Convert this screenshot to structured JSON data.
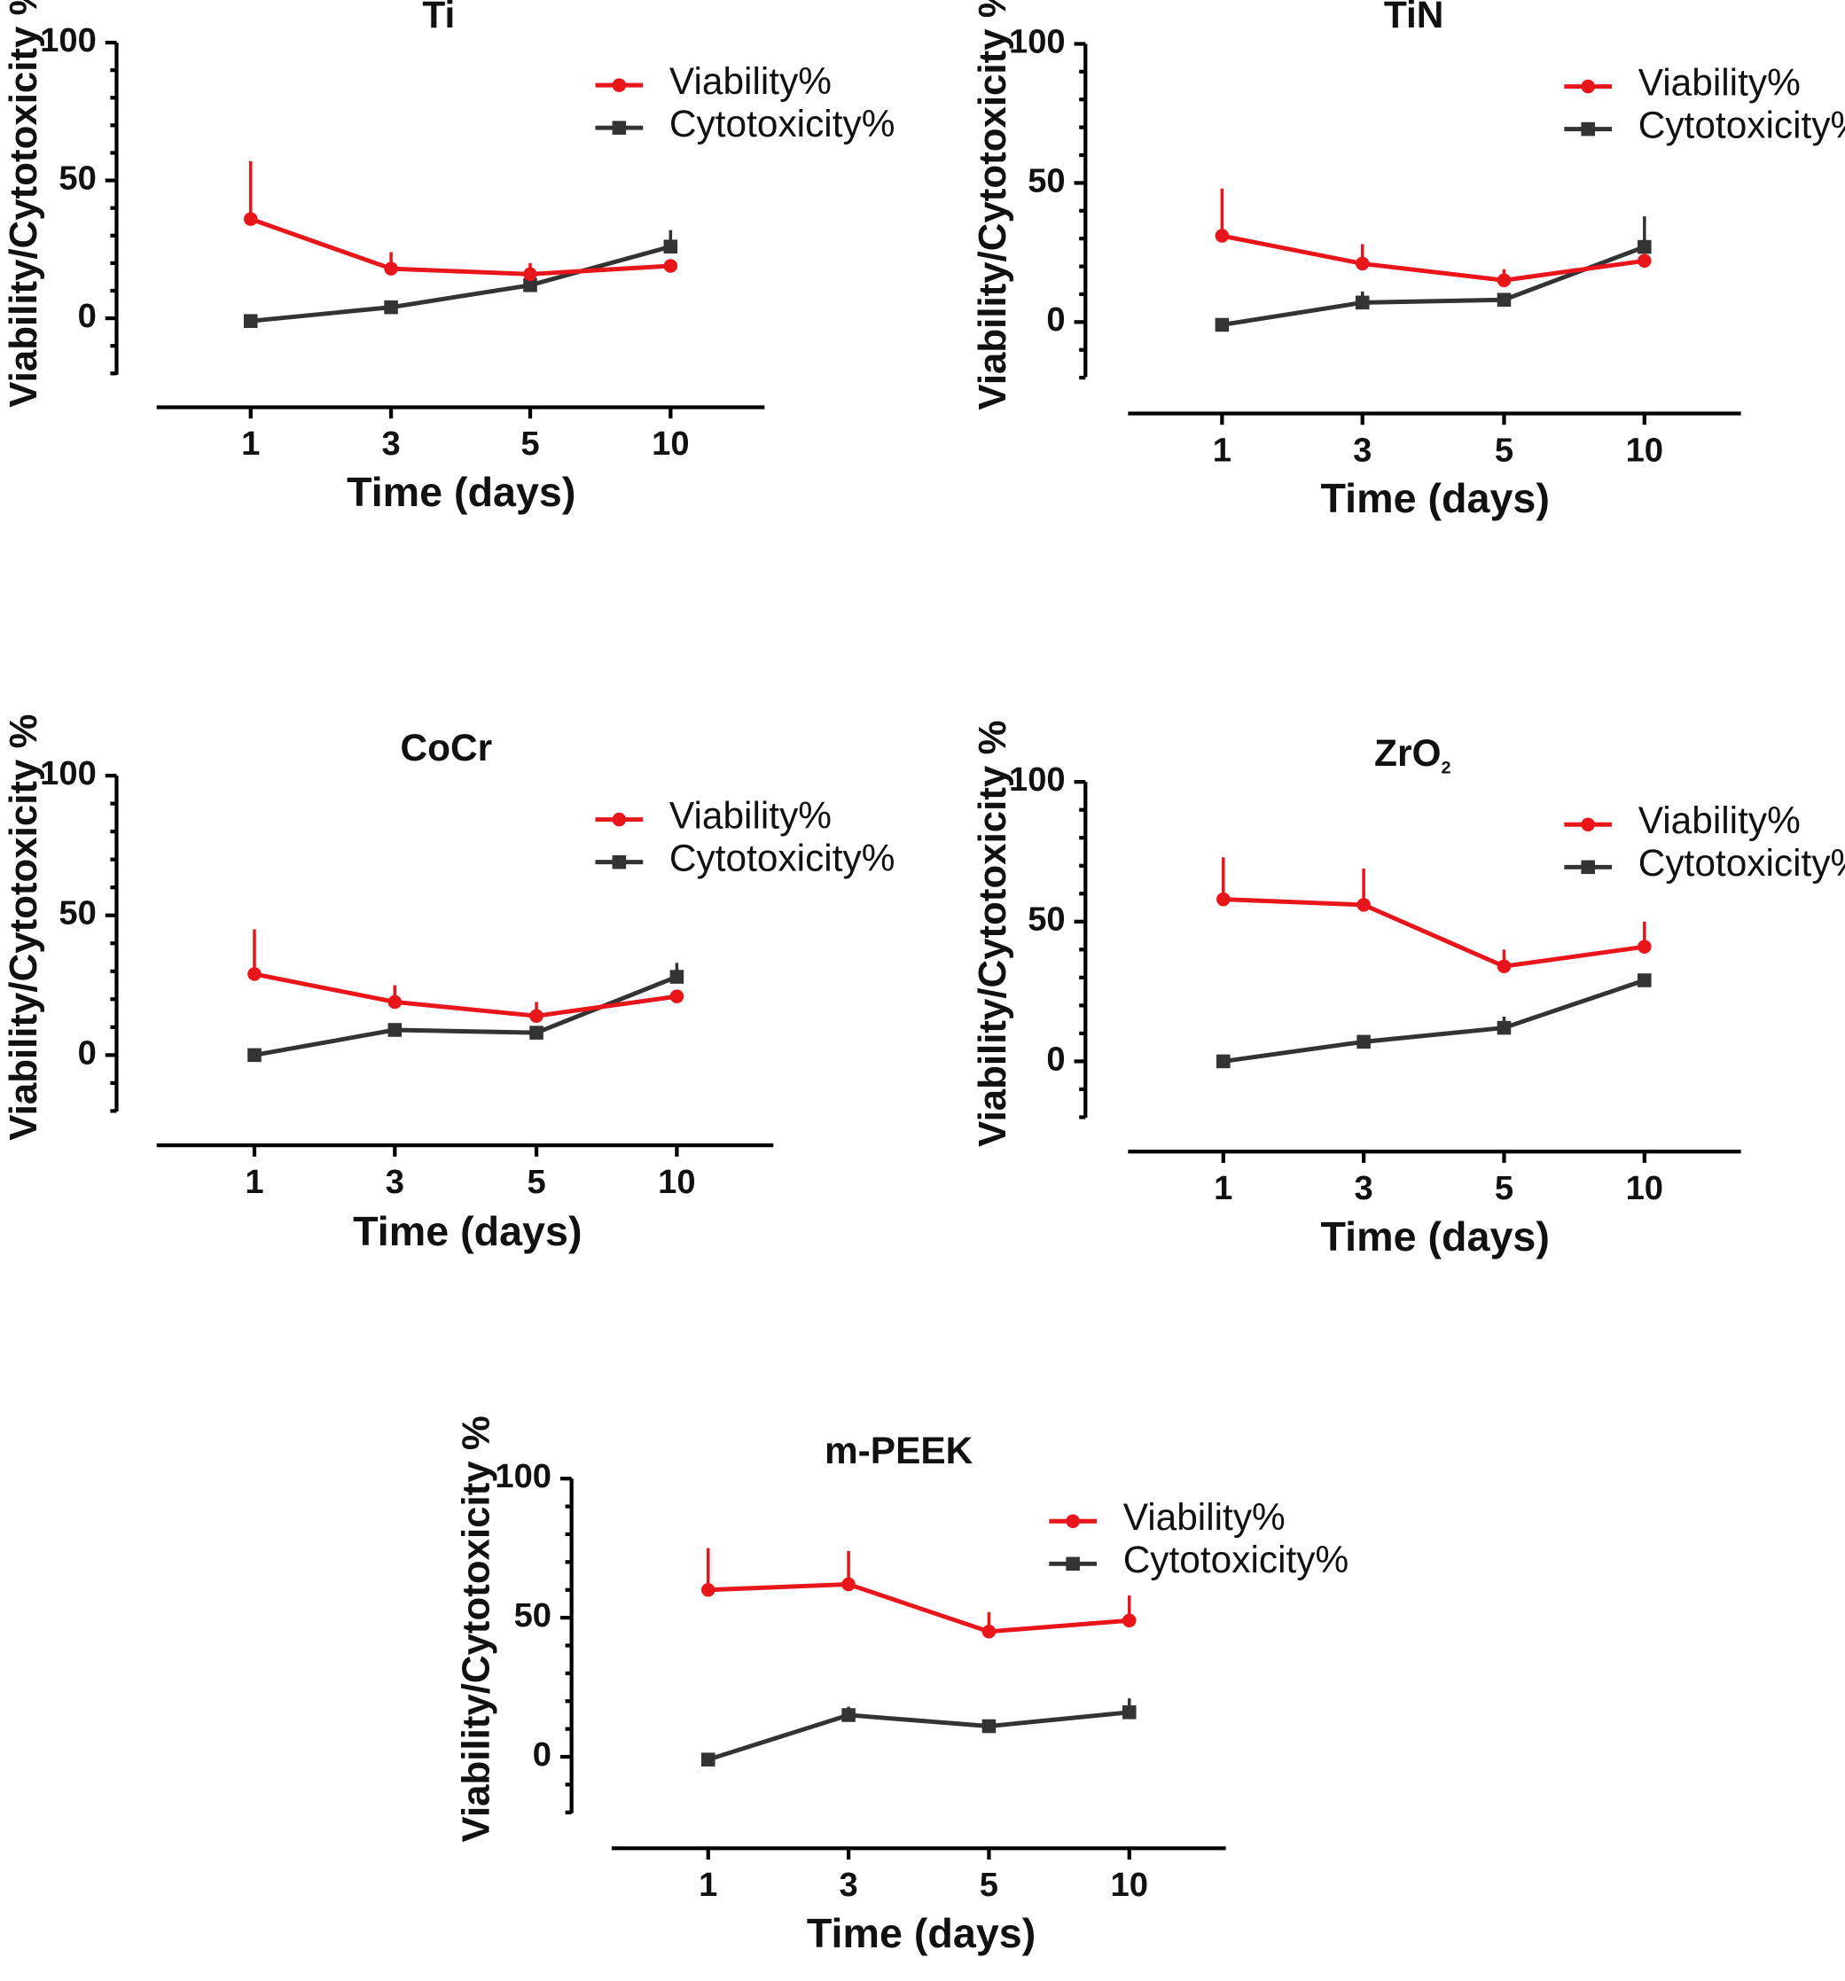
{
  "figure": {
    "background": "#ffffff"
  },
  "colors": {
    "viability": "#e8161b",
    "cytotoxicity": "#333333",
    "axis": "#000000"
  },
  "chart_data": [
    {
      "type": "line",
      "title": "Ti",
      "title_main": "Ti",
      "title_sub": "",
      "xlabel": "Time (days)",
      "ylabel": "Viability/Cytotoxicity %",
      "categories": [
        "1",
        "3",
        "5",
        "10"
      ],
      "ylim": [
        -20,
        100
      ],
      "yticks": [
        0,
        50,
        100
      ],
      "legend": {
        "position": "top-right",
        "entries": [
          "Viability%",
          "Cytotoxicity%"
        ]
      },
      "series": [
        {
          "name": "Viability%",
          "marker": "circle",
          "values": [
            36,
            18,
            16,
            19
          ],
          "err": [
            21,
            6,
            4,
            0
          ]
        },
        {
          "name": "Cytotoxicity%",
          "marker": "square",
          "values": [
            -1,
            4,
            12,
            26
          ],
          "err": [
            0,
            2,
            2,
            6
          ]
        }
      ]
    },
    {
      "type": "line",
      "title": "TiN",
      "title_main": "TiN",
      "title_sub": "",
      "xlabel": "Time (days)",
      "ylabel": "Viability/Cytotoxicity %",
      "categories": [
        "1",
        "3",
        "5",
        "10"
      ],
      "ylim": [
        -20,
        100
      ],
      "yticks": [
        0,
        50,
        100
      ],
      "legend": {
        "position": "top-right",
        "entries": [
          "Viability%",
          "Cytotoxicity%"
        ]
      },
      "series": [
        {
          "name": "Viability%",
          "marker": "circle",
          "values": [
            31,
            21,
            15,
            22
          ],
          "err": [
            17,
            7,
            4,
            0
          ]
        },
        {
          "name": "Cytotoxicity%",
          "marker": "square",
          "values": [
            -1,
            7,
            8,
            27
          ],
          "err": [
            0,
            4,
            2,
            11
          ]
        }
      ]
    },
    {
      "type": "line",
      "title": "CoCr",
      "title_main": "CoCr",
      "title_sub": "",
      "xlabel": "Time (days)",
      "ylabel": "Viability/Cytotoxicity %",
      "categories": [
        "1",
        "3",
        "5",
        "10"
      ],
      "ylim": [
        -20,
        100
      ],
      "yticks": [
        0,
        50,
        100
      ],
      "legend": {
        "position": "top-right",
        "entries": [
          "Viability%",
          "Cytotoxicity%"
        ]
      },
      "series": [
        {
          "name": "Viability%",
          "marker": "circle",
          "values": [
            29,
            19,
            14,
            21
          ],
          "err": [
            16,
            6,
            5,
            0
          ]
        },
        {
          "name": "Cytotoxicity%",
          "marker": "square",
          "values": [
            0,
            9,
            8,
            28
          ],
          "err": [
            0,
            0,
            0,
            5
          ]
        }
      ]
    },
    {
      "type": "line",
      "title": "ZrO2",
      "title_main": "ZrO",
      "title_sub": "2",
      "xlabel": "Time (days)",
      "ylabel": "Viability/Cytotoxicity %",
      "categories": [
        "1",
        "3",
        "5",
        "10"
      ],
      "ylim": [
        -20,
        100
      ],
      "yticks": [
        0,
        50,
        100
      ],
      "legend": {
        "position": "top-right",
        "entries": [
          "Viability%",
          "Cytotoxicity%"
        ]
      },
      "series": [
        {
          "name": "Viability%",
          "marker": "circle",
          "values": [
            58,
            56,
            34,
            41
          ],
          "err": [
            15,
            13,
            6,
            9
          ]
        },
        {
          "name": "Cytotoxicity%",
          "marker": "square",
          "values": [
            0,
            7,
            12,
            29
          ],
          "err": [
            0,
            0,
            4,
            0
          ]
        }
      ]
    },
    {
      "type": "line",
      "title": "m-PEEK",
      "title_main": "m-PEEK",
      "title_sub": "",
      "xlabel": "Time (days)",
      "ylabel": "Viability/Cytotoxicity %",
      "categories": [
        "1",
        "3",
        "5",
        "10"
      ],
      "ylim": [
        -20,
        100
      ],
      "yticks": [
        0,
        50,
        100
      ],
      "legend": {
        "position": "top-right",
        "entries": [
          "Viability%",
          "Cytotoxicity%"
        ]
      },
      "series": [
        {
          "name": "Viability%",
          "marker": "circle",
          "values": [
            60,
            62,
            45,
            49
          ],
          "err": [
            15,
            12,
            7,
            9
          ]
        },
        {
          "name": "Cytotoxicity%",
          "marker": "square",
          "values": [
            -1,
            15,
            11,
            16
          ],
          "err": [
            0,
            3,
            0,
            5
          ]
        }
      ]
    }
  ]
}
